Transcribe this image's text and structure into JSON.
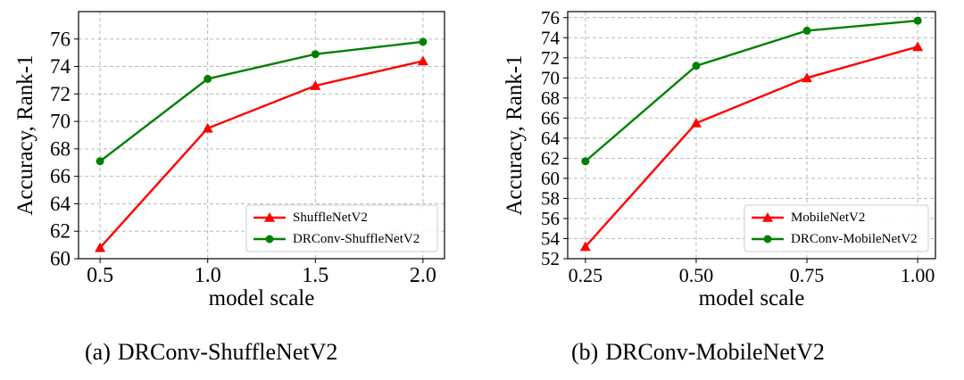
{
  "chart_data": [
    {
      "type": "line",
      "caption_tag": "(a)",
      "caption_text": "DRConv-ShuffleNetV2",
      "xlabel": "model scale",
      "ylabel": "Accuracy, Rank-1",
      "x": [
        0.5,
        1.0,
        1.5,
        2.0
      ],
      "x_tick_labels": [
        "0.5",
        "1.0",
        "1.5",
        "2.0"
      ],
      "xlim": [
        0.4,
        2.1
      ],
      "y_ticks": [
        60,
        62,
        64,
        66,
        68,
        70,
        72,
        74,
        76
      ],
      "ylim": [
        60,
        78
      ],
      "grid": true,
      "legend_position": "bottom-right",
      "series": [
        {
          "name": "ShuffleNetV2",
          "color": "#ff0000",
          "marker": "triangle",
          "values": [
            60.8,
            69.5,
            72.6,
            74.4
          ]
        },
        {
          "name": "DRConv-ShuffleNetV2",
          "color": "#008000",
          "marker": "circle",
          "values": [
            67.1,
            73.1,
            74.9,
            75.8
          ]
        }
      ]
    },
    {
      "type": "line",
      "caption_tag": "(b)",
      "caption_text": "DRConv-MobileNetV2",
      "xlabel": "model scale",
      "ylabel": "Accuracy, Rank-1",
      "x": [
        0.25,
        0.5,
        0.75,
        1.0
      ],
      "x_tick_labels": [
        "0.25",
        "0.50",
        "0.75",
        "1.00"
      ],
      "xlim": [
        0.21,
        1.04
      ],
      "y_ticks": [
        52,
        54,
        56,
        58,
        60,
        62,
        64,
        66,
        68,
        70,
        72,
        74,
        76
      ],
      "ylim": [
        52,
        76.6
      ],
      "grid": true,
      "legend_position": "bottom-right",
      "series": [
        {
          "name": "MobileNetV2",
          "color": "#ff0000",
          "marker": "triangle",
          "values": [
            53.2,
            65.5,
            70.0,
            73.1
          ]
        },
        {
          "name": "DRConv-MobileNetV2",
          "color": "#008000",
          "marker": "circle",
          "values": [
            61.7,
            71.2,
            74.7,
            75.7
          ]
        }
      ]
    }
  ]
}
